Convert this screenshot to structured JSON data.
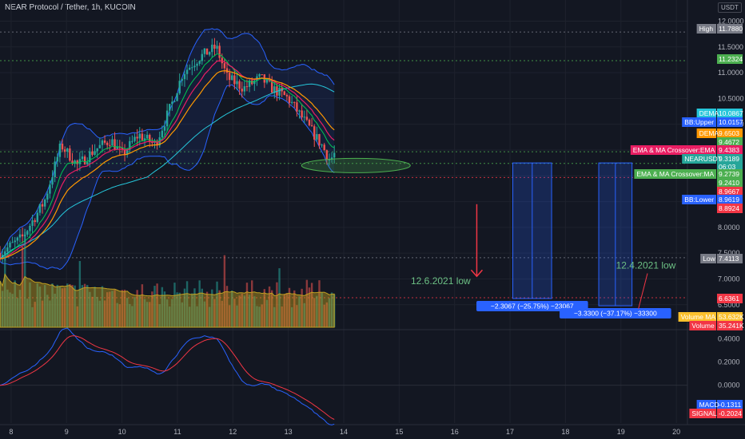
{
  "header": {
    "title": "NEAR Protocol / Tether, 1h, KUCOIN",
    "currency": "USDT"
  },
  "colors": {
    "background": "#131722",
    "up": "#26a69a",
    "down": "#ef5350",
    "bb": "#2962ff",
    "ema": "#e91e63",
    "dema": "#ff9800",
    "ma": "#26c6da",
    "sma_green": "#00c853",
    "volume_ma": "#c0a020",
    "macd": "#2962ff",
    "signal": "#f23645",
    "annot": "#6cc084"
  },
  "chart_data": {
    "type": "candlestick",
    "x_axis": {
      "ticks": [
        "8",
        "9",
        "10",
        "11",
        "12",
        "13",
        "14",
        "15",
        "16",
        "17",
        "18",
        "19",
        "20"
      ],
      "range": [
        7.8,
        20.2
      ]
    },
    "price_axis": {
      "ticks": [
        "12.0000",
        "11.5000",
        "11.0000",
        "10.5000",
        "10.0000",
        "9.5000",
        "9.0000",
        "8.5000",
        "8.0000",
        "7.5000",
        "7.0000",
        "6.5000"
      ],
      "range": [
        6.45,
        12.1
      ]
    },
    "macd_axis": {
      "ticks": [
        "0.4000",
        "0.2000",
        "0.0000",
        "-0.2000"
      ],
      "range": [
        -0.27,
        0.43
      ]
    },
    "price_close_anchors": [
      [
        7.8,
        7.5
      ],
      [
        8.2,
        7.8
      ],
      [
        8.6,
        8.5
      ],
      [
        8.9,
        9.6
      ],
      [
        9.2,
        9.2
      ],
      [
        9.5,
        9.5
      ],
      [
        9.8,
        9.7
      ],
      [
        10.0,
        9.4
      ],
      [
        10.3,
        9.8
      ],
      [
        10.6,
        9.6
      ],
      [
        10.9,
        10.4
      ],
      [
        11.1,
        11.0
      ],
      [
        11.4,
        11.3
      ],
      [
        11.7,
        11.5
      ],
      [
        11.9,
        10.9
      ],
      [
        12.2,
        10.7
      ],
      [
        12.5,
        10.9
      ],
      [
        12.7,
        10.7
      ],
      [
        13.0,
        10.5
      ],
      [
        13.2,
        10.2
      ],
      [
        13.4,
        9.9
      ],
      [
        13.6,
        9.6
      ],
      [
        13.75,
        9.3
      ],
      [
        13.85,
        9.45
      ]
    ],
    "reference_lines": [
      {
        "label": "High",
        "value": 11.788,
        "text": "11.7880",
        "color": "#787b86"
      },
      {
        "label": "",
        "value": 11.2324,
        "text": "11.2324",
        "color": "#4caf50"
      },
      {
        "label": "DEMA",
        "value": 10.0867,
        "text": "10.0867",
        "color": "#26c6da"
      },
      {
        "label": "BB:Upper",
        "value": 10.0157,
        "text": "10.0157",
        "color": "#2962ff"
      },
      {
        "label": "DEMA",
        "value": 9.6503,
        "text": "9.6503",
        "color": "#ff9800"
      },
      {
        "label": "",
        "value": 9.4672,
        "text": "9.4672",
        "color": "#4caf50"
      },
      {
        "label": "EMA & MA Crossover:EMA",
        "value": 9.4383,
        "text": "9.4383",
        "color": "#e91e63"
      },
      {
        "label": "NEARUSDT",
        "value": 9.3189,
        "text": "9.3189",
        "color": "#26a69a"
      },
      {
        "label": "",
        "value": 9.21,
        "text": "06:03",
        "color": "#26a69a"
      },
      {
        "label": "EMA & MA Crossover:MA",
        "value": 9.2739,
        "text": "9.2739",
        "color": "#4caf50"
      },
      {
        "label": "",
        "value": 9.241,
        "text": "9.2410",
        "color": "#4caf50"
      },
      {
        "label": "",
        "value": 8.9667,
        "text": "8.9667",
        "color": "#f23645"
      },
      {
        "label": "BB:Lower",
        "value": 8.9619,
        "text": "8.9619",
        "color": "#2962ff"
      },
      {
        "label": "",
        "value": 8.8924,
        "text": "8.8924",
        "color": "#f23645"
      },
      {
        "label": "Low",
        "value": 7.4113,
        "text": "7.4113",
        "color": "#787b86"
      },
      {
        "label": "",
        "value": 6.6361,
        "text": "6.6361",
        "color": "#f23645"
      }
    ],
    "volume_labels": [
      {
        "label": "Volume MA",
        "text": "53.632K",
        "color": "#fbc02d"
      },
      {
        "label": "Volume",
        "text": "35.241K",
        "color": "#f23645"
      }
    ],
    "macd_labels": [
      {
        "label": "MACD",
        "text": "-0.1311",
        "color": "#2962ff"
      },
      {
        "label": "SIGNAL",
        "text": "-0.2024",
        "color": "#f23645"
      }
    ],
    "measurements": [
      {
        "x_from": 17.05,
        "x_to": 17.75,
        "y_from": 9.25,
        "y_to": 6.62,
        "label": "−2.3067 (−25.75%) −23067"
      },
      {
        "x_from": 18.6,
        "x_to": 19.2,
        "y_from": 9.25,
        "y_to": 6.48,
        "label": "−3.3300 (−37.17%) −33300"
      }
    ],
    "annotations": [
      {
        "text": "12.6.2021 low",
        "x": 15.75,
        "y": 6.9
      },
      {
        "text": "12.4.2021 low",
        "x": 19.45,
        "y": 7.2
      }
    ],
    "ellipse": {
      "x": 14.22,
      "y": 9.2
    },
    "arrow": {
      "x": 16.4,
      "y_from": 8.45,
      "y_to": 7.05
    }
  }
}
